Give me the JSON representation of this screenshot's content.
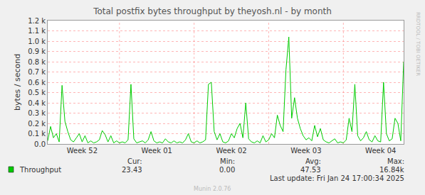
{
  "chart_data": {
    "type": "line",
    "title": "Total postfix bytes throughput by theyosh.nl - by month",
    "y_label": "bytes / second",
    "categories": [
      null,
      null,
      null,
      null,
      null,
      null,
      null,
      null,
      null,
      null,
      null,
      null,
      "Week 52",
      null,
      null,
      null,
      null,
      null,
      null,
      null,
      null,
      null,
      null,
      null,
      null,
      null,
      null,
      null,
      null,
      null,
      null,
      null,
      null,
      null,
      null,
      null,
      null,
      null,
      "Week 01",
      null,
      null,
      null,
      null,
      null,
      null,
      null,
      null,
      null,
      null,
      null,
      null,
      null,
      null,
      null,
      null,
      null,
      null,
      null,
      null,
      null,
      null,
      null,
      null,
      null,
      "Week 02",
      null,
      null,
      null,
      null,
      null,
      null,
      null,
      null,
      null,
      null,
      null,
      null,
      null,
      null,
      null,
      null,
      null,
      null,
      null,
      null,
      null,
      null,
      null,
      null,
      null,
      "Week 03",
      null,
      null,
      null,
      null,
      null,
      null,
      null,
      null,
      null,
      null,
      null,
      null,
      null,
      null,
      null,
      null,
      null,
      null,
      null,
      null,
      null,
      null,
      null,
      null,
      null,
      "Week 04",
      null,
      null,
      null,
      null,
      null,
      null,
      null,
      null
    ],
    "series": [
      {
        "name": "Throughput",
        "color": "#00cc00",
        "values": [
          30,
          170,
          60,
          100,
          20,
          570,
          220,
          120,
          40,
          20,
          60,
          100,
          20,
          80,
          10,
          30,
          10,
          20,
          40,
          130,
          90,
          20,
          80,
          10,
          30,
          10,
          20,
          10,
          40,
          580,
          50,
          10,
          20,
          30,
          10,
          40,
          120,
          30,
          10,
          20,
          10,
          50,
          20,
          10,
          30,
          10,
          20,
          10,
          40,
          100,
          20,
          10,
          30,
          10,
          20,
          40,
          580,
          600,
          120,
          40,
          100,
          20,
          10,
          30,
          100,
          60,
          150,
          200,
          60,
          400,
          50,
          20,
          10,
          30,
          10,
          80,
          20,
          40,
          100,
          60,
          280,
          180,
          120,
          720,
          1040,
          250,
          450,
          250,
          150,
          80,
          40,
          60,
          30,
          180,
          70,
          150,
          40,
          20,
          10,
          30,
          50,
          10,
          20,
          10,
          40,
          250,
          120,
          580,
          80,
          30,
          60,
          120,
          40,
          20,
          80,
          30,
          20,
          600,
          100,
          30,
          50,
          250,
          200,
          30,
          800
        ],
        "stats": [
          "23.43",
          "0.00",
          "47.53",
          "16.84k"
        ]
      }
    ],
    "stats_headers": [
      "Cur:",
      "Min:",
      "Avg:",
      "Max:"
    ],
    "ylim": [
      0,
      1200
    ],
    "yticks": [
      {
        "value": 0,
        "label": "0.0"
      },
      {
        "value": 100,
        "label": "0.1 k"
      },
      {
        "value": 200,
        "label": "0.2 k"
      },
      {
        "value": 300,
        "label": "0.3 k"
      },
      {
        "value": 400,
        "label": "0.4 k"
      },
      {
        "value": 500,
        "label": "0.5 k"
      },
      {
        "value": 600,
        "label": "0.6 k"
      },
      {
        "value": 700,
        "label": "0.7 k"
      },
      {
        "value": 800,
        "label": "0.8 k"
      },
      {
        "value": 900,
        "label": "0.9 k"
      },
      {
        "value": 1000,
        "label": "1.0 k"
      },
      {
        "value": 1100,
        "label": "1.1 k"
      },
      {
        "value": 1200,
        "label": "1.2 k"
      }
    ],
    "grid": true,
    "footer": "Last update: Fri Jan 24 17:00:34 2025",
    "credit": "Munin 2.0.76",
    "side_text": "RRDTOOL / TOBI OETIKER"
  }
}
